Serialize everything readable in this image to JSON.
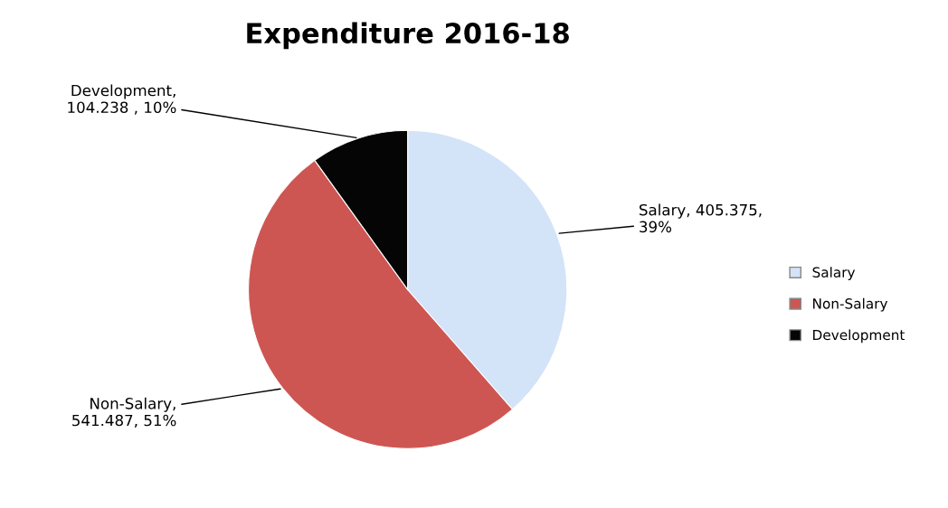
{
  "chart_data": {
    "type": "pie",
    "title": "Expenditure 2016-18",
    "categories": [
      "Salary",
      "Non-Salary",
      "Development"
    ],
    "values": [
      405.375,
      541.487,
      104.238
    ],
    "colors": [
      "#d3e3f8",
      "#cd5652",
      "#050505"
    ],
    "value_labels": [
      "Salary, 405.375,\n39%",
      "Non-Salary,\n541.487, 51%",
      "Development,\n104.238 , 10%"
    ],
    "legend": "right"
  }
}
